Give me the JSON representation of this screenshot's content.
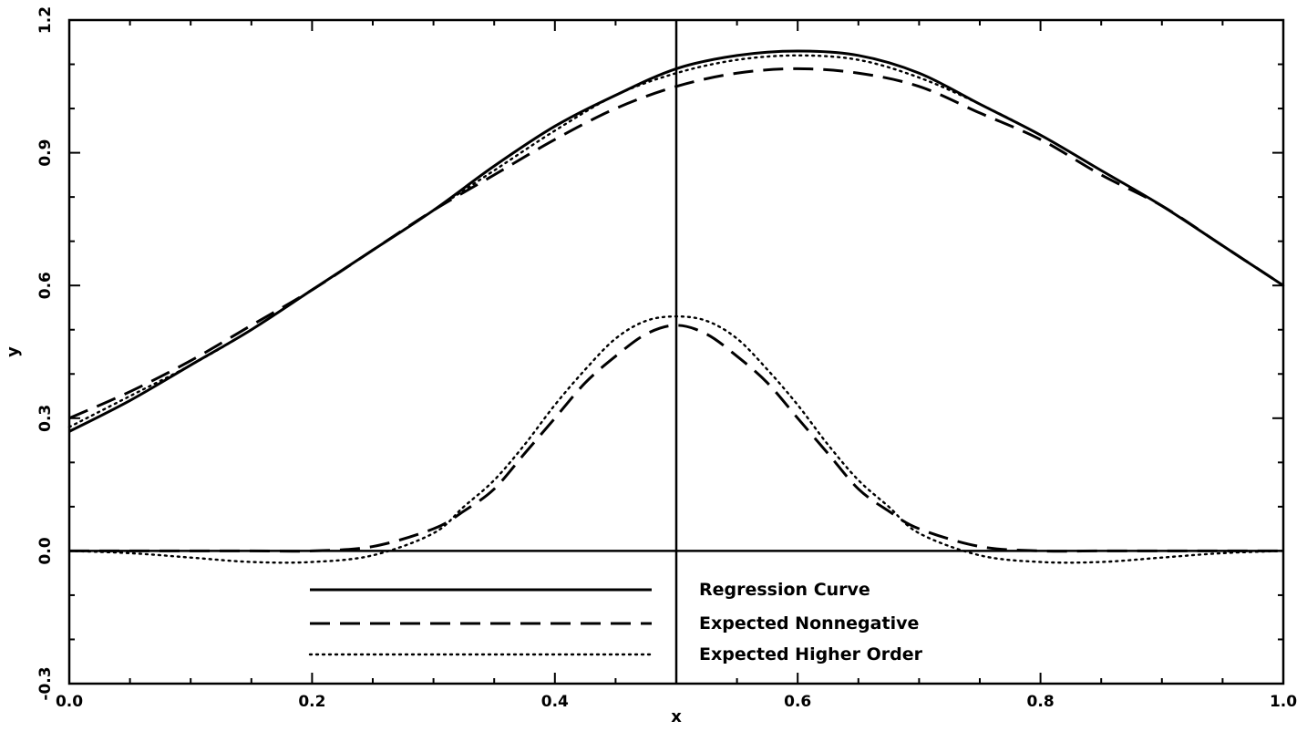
{
  "chart_data": {
    "type": "line",
    "title": "",
    "xlabel": "x",
    "ylabel": "y",
    "xlim": [
      0.0,
      1.0
    ],
    "ylim": [
      -0.3,
      1.2
    ],
    "x_ticks": [
      "0.0",
      "0.2",
      "0.4",
      "0.6",
      "0.8",
      "1.0"
    ],
    "y_ticks": [
      "-0.3",
      "0.0",
      "0.3",
      "0.6",
      "0.9",
      "1.2"
    ],
    "grid": false,
    "legend_position": "bottom-center",
    "reference_lines": {
      "horizontal_y": 0.0,
      "vertical_x": 0.5
    },
    "x": [
      0.0,
      0.05,
      0.1,
      0.15,
      0.2,
      0.25,
      0.3,
      0.35,
      0.4,
      0.45,
      0.5,
      0.55,
      0.6,
      0.65,
      0.7,
      0.75,
      0.8,
      0.85,
      0.9,
      0.95,
      1.0
    ],
    "series": [
      {
        "name": "Regression Curve",
        "style": "solid",
        "values": [
          0.27,
          0.34,
          0.42,
          0.5,
          0.59,
          0.68,
          0.77,
          0.87,
          0.96,
          1.03,
          1.09,
          1.12,
          1.13,
          1.12,
          1.08,
          1.01,
          0.94,
          0.86,
          0.78,
          0.69,
          0.6
        ]
      },
      {
        "name": "Expected Nonnegative",
        "style": "dashed",
        "values": [
          0.3,
          0.36,
          0.43,
          0.51,
          0.59,
          0.68,
          0.77,
          0.85,
          0.93,
          1.0,
          1.05,
          1.08,
          1.09,
          1.08,
          1.05,
          0.99,
          0.93,
          0.85,
          0.78,
          0.69,
          0.6
        ]
      },
      {
        "name": "Expected Higher Order",
        "style": "dotted",
        "values": [
          0.28,
          0.35,
          0.42,
          0.5,
          0.59,
          0.68,
          0.77,
          0.86,
          0.95,
          1.03,
          1.08,
          1.11,
          1.12,
          1.11,
          1.07,
          1.01,
          0.94,
          0.86,
          0.78,
          0.69,
          0.6
        ]
      }
    ],
    "lower_curves": {
      "x": [
        0.0,
        0.05,
        0.1,
        0.15,
        0.2,
        0.25,
        0.3,
        0.325,
        0.35,
        0.375,
        0.4,
        0.425,
        0.45,
        0.475,
        0.5,
        0.525,
        0.55,
        0.575,
        0.6,
        0.625,
        0.65,
        0.675,
        0.7,
        0.75,
        0.8,
        0.85,
        0.9,
        0.95,
        1.0
      ],
      "series": [
        {
          "name": "Expected Nonnegative",
          "style": "dashed",
          "values": [
            0.0,
            0.0,
            0.0,
            0.0,
            0.0,
            0.01,
            0.05,
            0.09,
            0.14,
            0.22,
            0.3,
            0.38,
            0.44,
            0.49,
            0.51,
            0.49,
            0.44,
            0.38,
            0.3,
            0.22,
            0.14,
            0.09,
            0.05,
            0.01,
            0.0,
            0.0,
            0.0,
            0.0,
            0.0
          ]
        },
        {
          "name": "Expected Higher Order",
          "style": "dotted",
          "values": [
            0.0,
            -0.005,
            -0.015,
            -0.025,
            -0.025,
            -0.01,
            0.04,
            0.1,
            0.16,
            0.24,
            0.33,
            0.41,
            0.48,
            0.52,
            0.53,
            0.52,
            0.48,
            0.41,
            0.33,
            0.24,
            0.16,
            0.1,
            0.04,
            -0.01,
            -0.025,
            -0.025,
            -0.015,
            -0.005,
            0.0
          ]
        }
      ]
    }
  }
}
